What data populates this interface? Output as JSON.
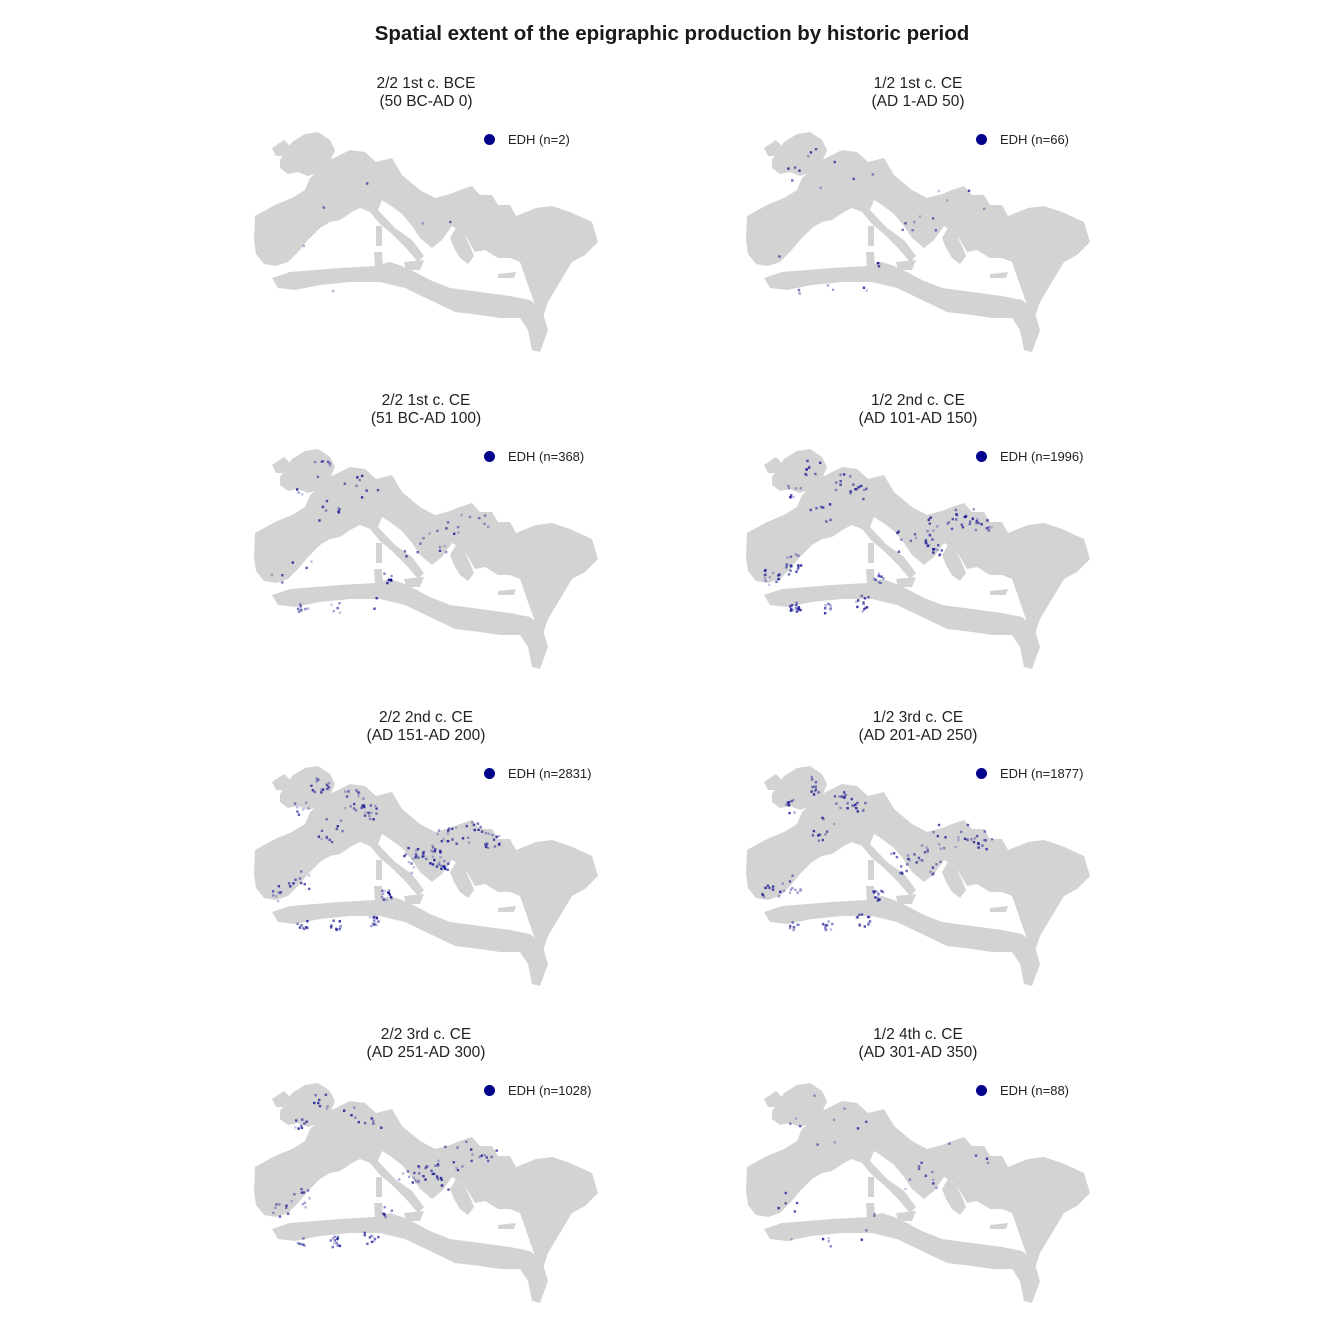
{
  "title": "Spatial extent of the epigraphic production by historic period",
  "colors": {
    "land": "#d3d3d3",
    "points": "#00008b"
  },
  "panels": [
    {
      "period": "2/2 1st c. BCE",
      "range": "(50 BC-AD 0)",
      "legend": "EDH (n=2)",
      "n": 2
    },
    {
      "period": "1/2 1st c. CE",
      "range": "(AD 1-AD 50)",
      "legend": "EDH (n=66)",
      "n": 66
    },
    {
      "period": "2/2 1st c. CE",
      "range": "(51 BC-AD 100)",
      "legend": "EDH (n=368)",
      "n": 368
    },
    {
      "period": "1/2 2nd c. CE",
      "range": "(AD 101-AD 150)",
      "legend": "EDH (n=1996)",
      "n": 1996
    },
    {
      "period": "2/2 2nd c. CE",
      "range": "(AD 151-AD 200)",
      "legend": "EDH (n=2831)",
      "n": 2831
    },
    {
      "period": "1/2 3rd c. CE",
      "range": "(AD 201-AD 250)",
      "legend": "EDH (n=1877)",
      "n": 1877
    },
    {
      "period": "2/2 3rd c. CE",
      "range": "(AD 251-AD 300)",
      "legend": "EDH (n=1028)",
      "n": 1028
    },
    {
      "period": "1/2 4th c. CE",
      "range": "(AD 301-AD 350)",
      "legend": "EDH (n=88)",
      "n": 88
    }
  ]
}
